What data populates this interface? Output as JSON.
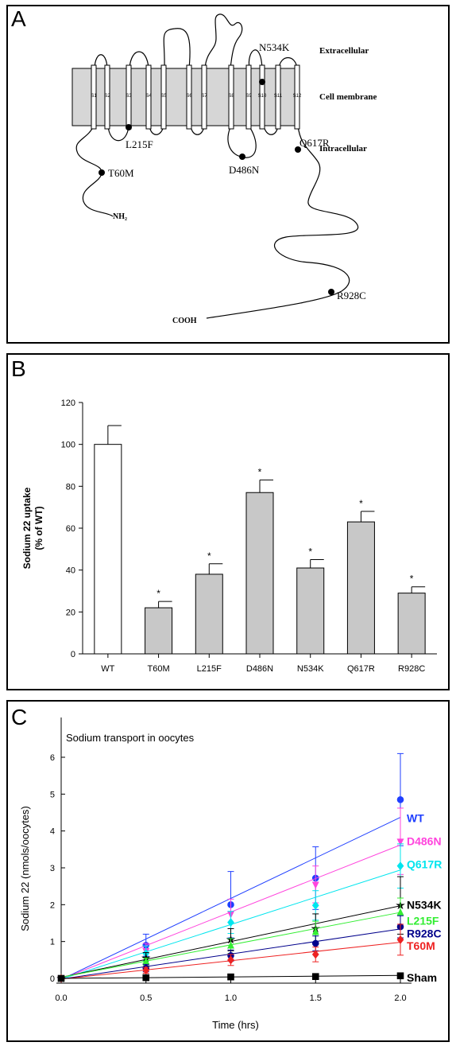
{
  "panel_a": {
    "letter": "A",
    "regions": {
      "extracellular": "Extracellular",
      "membrane": "Cell membrane",
      "intracellular": "Intracellular"
    },
    "segments": [
      "S1",
      "S2",
      "S3",
      "S4",
      "S5",
      "S6",
      "S7",
      "S8",
      "S9",
      "S10",
      "S11",
      "S12"
    ],
    "mutations": [
      "T60M",
      "L215F",
      "D486N",
      "N534K",
      "Q617R",
      "R928C"
    ],
    "n_terminus": "NH₂",
    "c_terminus": "COOH"
  },
  "panel_b": {
    "letter": "B",
    "asterisk": "*"
  },
  "panel_c": {
    "letter": "C",
    "asterisk": "*"
  },
  "chart_data": [
    {
      "type": "bar",
      "panel": "B",
      "title": "",
      "xlabel": "",
      "ylabel": "Sodium 22 uptake\n(% of WT)",
      "ylim": [
        0,
        120
      ],
      "yticks": [
        0,
        20,
        40,
        60,
        80,
        100,
        120
      ],
      "categories": [
        "WT",
        "T60M",
        "L215F",
        "D486N",
        "N534K",
        "Q617R",
        "R928C"
      ],
      "values": [
        100,
        22,
        38,
        77,
        41,
        63,
        29
      ],
      "errors": [
        9,
        3,
        5,
        6,
        4,
        5,
        3
      ],
      "significant": [
        false,
        true,
        true,
        true,
        true,
        true,
        true
      ],
      "fill_colors": [
        "#ffffff",
        "#c8c8c8",
        "#c8c8c8",
        "#c8c8c8",
        "#c8c8c8",
        "#c8c8c8",
        "#c8c8c8"
      ],
      "grid": false
    },
    {
      "type": "line",
      "panel": "C",
      "title": "Sodium transport in oocytes",
      "xlabel": "Time (hrs)",
      "ylabel": "Sodium 22 (nmols/oocytes)",
      "xlim": [
        0.0,
        2.0
      ],
      "ylim": [
        0,
        6
      ],
      "xticks": [
        "0.0",
        "0.5",
        "1.0",
        "1.5",
        "2.0"
      ],
      "yticks": [
        0,
        1,
        2,
        3,
        4,
        5,
        6
      ],
      "x": [
        0,
        0.5,
        1.0,
        1.5,
        2.0
      ],
      "grid": false,
      "series": [
        {
          "name": "WT",
          "color": "#1f3fff",
          "marker": "circle",
          "values": [
            0,
            0.9,
            2.0,
            2.72,
            4.85
          ],
          "fit": [
            -0.03,
            2.2
          ],
          "errors": [
            0,
            0.3,
            0.9,
            0.85,
            1.25
          ]
        },
        {
          "name": "D486N",
          "color": "#ff44dd",
          "marker": "triangle-down",
          "values": [
            0,
            0.75,
            1.75,
            2.55,
            3.72
          ],
          "fit": [
            -0.02,
            1.82
          ],
          "errors": [
            0,
            0.2,
            0.4,
            0.5,
            0.9
          ]
        },
        {
          "name": "Q617R",
          "color": "#00e5ee",
          "marker": "diamond",
          "values": [
            0,
            0.68,
            1.52,
            1.98,
            3.05
          ],
          "fit": [
            -0.02,
            1.48
          ],
          "errors": [
            0,
            0.2,
            0.3,
            0.4,
            0.6
          ]
        },
        {
          "name": "N534K",
          "color": "#000000",
          "marker": "star",
          "values": [
            0,
            0.55,
            1.05,
            1.35,
            1.98
          ],
          "fit": [
            0.03,
            0.97
          ],
          "errors": [
            0,
            0.15,
            0.3,
            0.4,
            0.78
          ]
        },
        {
          "name": "L215F",
          "color": "#33ee33",
          "marker": "triangle-up",
          "values": [
            0,
            0.45,
            0.88,
            1.25,
            1.78
          ],
          "fit": [
            0.03,
            0.88
          ],
          "errors": [
            0,
            0.1,
            0.2,
            0.3,
            0.4
          ]
        },
        {
          "name": "R928C",
          "color": "#00008b",
          "marker": "hexagon",
          "values": [
            0,
            0.28,
            0.62,
            0.95,
            1.4
          ],
          "fit": [
            -0.02,
            0.68
          ],
          "errors": [
            0,
            0.1,
            0.15,
            0.2,
            0.3
          ]
        },
        {
          "name": "T60M",
          "color": "#ee2222",
          "marker": "diamond",
          "values": [
            0,
            0.22,
            0.5,
            0.65,
            1.05
          ],
          "fit": [
            -0.02,
            0.5
          ],
          "errors": [
            0,
            0.08,
            0.15,
            0.2,
            0.42
          ]
        },
        {
          "name": "Sham",
          "color": "#000000",
          "marker": "square",
          "values": [
            0,
            0.02,
            0.04,
            0.05,
            0.07
          ],
          "fit": [
            0.0,
            0.04
          ],
          "errors": [
            0,
            0.01,
            0.01,
            0.01,
            0.01
          ]
        }
      ]
    }
  ]
}
